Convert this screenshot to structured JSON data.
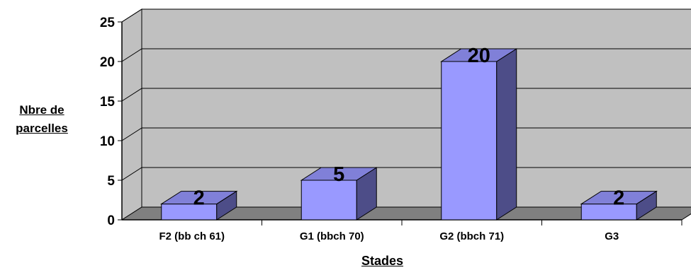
{
  "chart_data": {
    "type": "bar",
    "categories": [
      "F2 (bb ch 61)",
      "G1 (bbch 70)",
      "G2 (bbch 71)",
      "G3"
    ],
    "values": [
      2,
      5,
      20,
      2
    ],
    "data_labels": [
      "2",
      "5",
      "20",
      "2"
    ],
    "yticks": [
      "0",
      "5",
      "10",
      "15",
      "20",
      "25"
    ],
    "ylim": [
      0,
      25
    ],
    "ylabel_lines": [
      "Nbre de",
      "parcelles"
    ],
    "xlabel": "Stades",
    "grid": true,
    "legend": "none",
    "colors": {
      "bar_front": "#9999FF",
      "bar_side": "#4D4D88",
      "bar_top": "#8080D8",
      "wall": "#C0C0C0",
      "floor": "#808080"
    }
  }
}
